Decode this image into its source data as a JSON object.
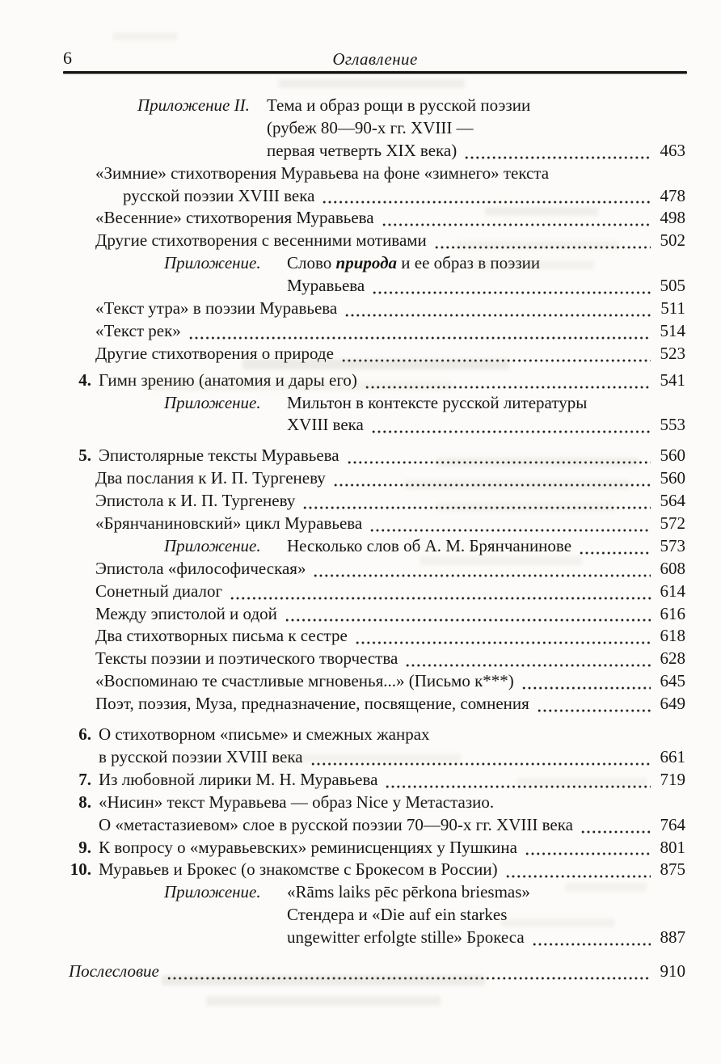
{
  "colors": {
    "ink": "#1a1613",
    "paper": "#fcfbf9"
  },
  "page_header": {
    "page_number": "6",
    "running_title": "Оглавление"
  },
  "toc": {
    "rows": [
      {
        "cls": "app2",
        "label": "Приложение II.",
        "text": "Тема и образ рощи в русской поэзии"
      },
      {
        "cls": "app2cont",
        "text": "(рубеж 80—90-х гг. XVIII —"
      },
      {
        "cls": "app2cont",
        "text": "первая четверть XIX века)",
        "page": "463"
      },
      {
        "cls": "entry",
        "text": "«Зимние» стихотворения Муравьева на фоне «зимнего» текста"
      },
      {
        "cls": "hang",
        "text": "русской поэзии XVIII века",
        "page": "478"
      },
      {
        "cls": "entry",
        "text": "«Весенние» стихотворения Муравьева",
        "page": "498"
      },
      {
        "cls": "entry",
        "text": "Другие стихотворения с весенними мотивами",
        "page": "502"
      },
      {
        "cls": "app",
        "label": "Приложение.",
        "rich": [
          {
            "t": "Слово "
          },
          {
            "t": "природа",
            "s": "bi"
          },
          {
            "t": " и ее образ в поэзии"
          }
        ]
      },
      {
        "cls": "appcont",
        "text": "Муравьева",
        "page": "505"
      },
      {
        "cls": "entry",
        "text": "«Текст утра» в поэзии Муравьева",
        "page": "511"
      },
      {
        "cls": "entry",
        "text": "«Текст рек»",
        "page": "514"
      },
      {
        "cls": "entry",
        "text": "Другие стихотворения о природе",
        "page": "523"
      },
      {
        "cls": "numbered gap-sm",
        "num": "4.",
        "text": "Гимн зрению (анатомия и дары его)",
        "page": "541"
      },
      {
        "cls": "app",
        "label": "Приложение.",
        "text": "Мильтон в контексте русской литературы"
      },
      {
        "cls": "appcont",
        "text": "XVIII века",
        "page": "553"
      },
      {
        "cls": "numbered gap",
        "num": "5.",
        "text": "Эпистолярные тексты Муравьева",
        "page": "560"
      },
      {
        "cls": "entry",
        "text": "Два послания к И. П. Тургеневу",
        "page": "560"
      },
      {
        "cls": "entry",
        "text": "Эпистола к И. П. Тургеневу",
        "page": "564"
      },
      {
        "cls": "entry",
        "text": "«Брянчаниновский» цикл Муравьева",
        "page": "572"
      },
      {
        "cls": "app",
        "label": "Приложение.",
        "text": "Несколько слов об А. М. Брянчанинове",
        "page": "573"
      },
      {
        "cls": "entry",
        "text": "Эпистола «философическая»",
        "page": "608"
      },
      {
        "cls": "entry",
        "text": "Сонетный диалог",
        "page": "614"
      },
      {
        "cls": "entry",
        "text": "Между эпистолой и одой",
        "page": "616"
      },
      {
        "cls": "entry",
        "text": "Два стихотворных письма к сестре",
        "page": "618"
      },
      {
        "cls": "entry",
        "text": "Тексты поэзии и поэтического творчества",
        "page": "628"
      },
      {
        "cls": "entry",
        "text": "«Воспоминаю те счастливые мгновенья...» (Письмо к***)",
        "page": "645"
      },
      {
        "cls": "entry",
        "text": "Поэт, поэзия, Муза, предназначение, посвящение, сомнения",
        "page": "649"
      },
      {
        "cls": "numbered gap",
        "num": "6.",
        "text": "О стихотворном «письме» и смежных жанрах"
      },
      {
        "cls": "contnum",
        "text": "в русской поэзии XVIII века",
        "page": "661"
      },
      {
        "cls": "numbered",
        "num": "7.",
        "text": "Из любовной лирики М. Н. Муравьева",
        "page": "719"
      },
      {
        "cls": "numbered",
        "num": "8.",
        "text": "«Нисин» текст Муравьева — образ Nice у Метастазио."
      },
      {
        "cls": "contnum",
        "text": "О «метастазиевом» слое в русской поэзии 70—90-х гг. XVIII века",
        "page": "764"
      },
      {
        "cls": "numbered",
        "num": "9.",
        "text": "К вопросу о «муравьевских» реминисценциях у Пушкина",
        "page": "801"
      },
      {
        "cls": "numbered",
        "num": "10.",
        "text": "Муравьев и Брокес (о знакомстве с Брокесом в России)",
        "page": "875"
      },
      {
        "cls": "app",
        "label": "Приложение.",
        "text": "«Rāms laiks pēc pērkona briesmas»"
      },
      {
        "cls": "appcont",
        "text": "Стендера и «Die auf ein starkes"
      },
      {
        "cls": "appcont",
        "text": "ungewitter erfolgte stille» Брокеса",
        "page": "887"
      },
      {
        "cls": "afterword gap-lg",
        "text": "Послесловие",
        "page": "910"
      }
    ]
  }
}
